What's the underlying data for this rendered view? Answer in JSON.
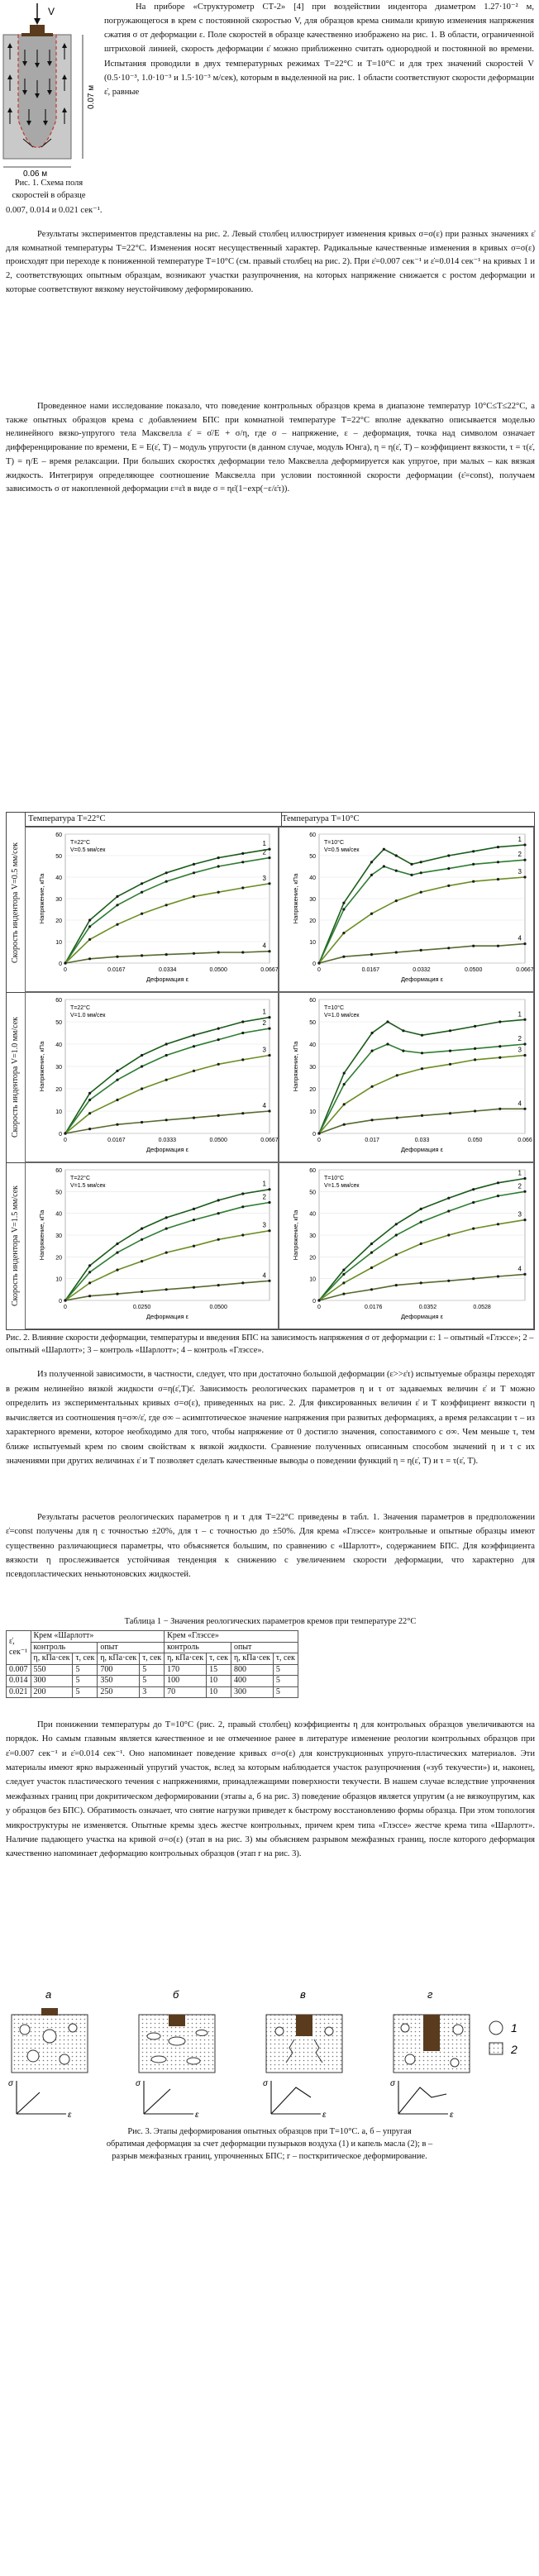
{
  "fig1": {
    "label_v": "V",
    "label_height": "0.07 м",
    "label_width": "0.06 м",
    "caption_l1": "Рис. 1. Схема поля",
    "caption_l2": "скоростей в образце"
  },
  "intro": {
    "p1": "На приборе «Структурометр СТ-2» [4] при воздействии индентора диаметром 1.27·10⁻² м, погружающегося в крем с постоянной скоростью V, для образцов крема снимали кривую изменения напряжения сжатия σ от деформации ε. Поле скоростей в образце качественно изображено на рис. 1. В области, ограниченной штриховой линией, скорость деформации ε̇ можно приближенно считать однородной и постоянной во времени. Испытания проводили в двух температурных режимах T=22°C и T=10°C и для трех значений скоростей V (0.5·10⁻³, 1.0·10⁻³ и 1.5·10⁻³ м/сек), которым в выделенной на рис. 1 области соответствуют скорости деформации ε̇, равные",
    "p1_end": "0.007, 0.014 и 0.021 сек⁻¹.",
    "p2": "Результаты экспериментов представлены на рис. 2. Левый столбец иллюстрирует изменения кривых σ=σ(ε) при разных значениях ε̇ для комнатной температуры T=22°C. Изменения носят несущественный характер. Радикальные качественные изменения в кривых σ=σ(ε) происходят при переходе к пониженной температуре T=10°C (см. правый столбец на рис. 2). При ε̇=0.007 сек⁻¹ и ε̇=0.014 сек⁻¹ на кривых 1 и 2, соответствующих опытным образцам, возникают участки разупрочнения, на которых напряжение снижается с ростом деформации и которые соответствуют вязкому неустойчивому деформированию.",
    "p3": "Проведенное нами исследование показало, что поведение контрольных образцов крема в диапазоне температур 10°C≤T≤22°C, а также опытных образцов крема с добавлением БПС при комнатной температуре T=22°C вполне адекватно описывается моделью нелинейного вязко-упругого тела Максвелла ε̇ = σ̇/E + σ/η, где σ – напряжение, ε – деформация, точка над символом означает дифференцирование по времени, E = E(ε̇, T) – модуль упругости (в данном случае, модуль Юнга), η = η(ε̇, T) – коэффициент вязкости, τ = τ(ε̇, T) = η/E – время релаксации. При больших скоростях деформации тело Максвелла деформируется как упругое, при малых – как вязкая жидкость. Интегрируя определяющее соотношение Максвелла при условии постоянной скорости деформации (ε̇=const), получаем зависимость σ от накопленной деформации ε=ε̇t в виде σ = ηε̇(1−exp(−ε/ε̇τ))."
  },
  "fig2": {
    "col_left": "Температура T=22°C",
    "col_right": "Температура T=10°C",
    "row1": "Скорость индентора V=0.5 мм/сек",
    "row2": "Скорость индентора V=1.0 мм/сек",
    "row3": "Скорость индентора V=1.5 мм/сек",
    "caption": "Рис. 2. Влияние скорости деформации, температуры и введения БПС на зависимость напряжения σ от деформации ε: 1 – опытный «Глэссе»; 2 – опытный «Шарлотт»; 3 – контроль «Шарлотт»; 4 – контроль «Глэссе».",
    "y_label": "Напряжение, кПа",
    "x_label": "Деформация ε"
  },
  "chart_data": [
    {
      "type": "line",
      "ylabel": "Напряжение, кПа",
      "xlabel": "Деформация ε",
      "legend_text": [
        "T=22°C",
        "V=0.5 мм/сек"
      ],
      "xticks": [
        "0",
        "0.0167",
        "0.0334",
        "0.0500",
        "0.0667"
      ],
      "yticks": [
        "0",
        "10",
        "20",
        "30",
        "40",
        "50",
        "60"
      ],
      "xlim": [
        0,
        0.0667
      ],
      "ylim": [
        0,
        60
      ],
      "series": [
        {
          "name": "1",
          "x": [
            0,
            0.008,
            0.017,
            0.025,
            0.033,
            0.042,
            0.05,
            0.058,
            0.0667
          ],
          "y": [
            0,
            20,
            31,
            37,
            42,
            46,
            49,
            51,
            53
          ]
        },
        {
          "name": "2",
          "x": [
            0,
            0.008,
            0.017,
            0.025,
            0.033,
            0.042,
            0.05,
            0.058,
            0.0667
          ],
          "y": [
            0,
            17,
            27,
            33,
            38,
            42,
            45,
            47,
            49
          ]
        },
        {
          "name": "3",
          "x": [
            0,
            0.008,
            0.017,
            0.025,
            0.033,
            0.042,
            0.05,
            0.058,
            0.0667
          ],
          "y": [
            0,
            11,
            18,
            23,
            27,
            31,
            33,
            35,
            37
          ]
        },
        {
          "name": "4",
          "x": [
            0,
            0.008,
            0.017,
            0.025,
            0.033,
            0.042,
            0.05,
            0.058,
            0.0667
          ],
          "y": [
            0,
            2,
            3,
            3.5,
            4,
            4.5,
            5,
            5,
            5.5
          ]
        }
      ]
    },
    {
      "type": "line",
      "ylabel": "Напряжение, кПа",
      "xlabel": "Деформация ε",
      "legend_text": [
        "T=10°C",
        "V=0.5 мм/сек"
      ],
      "xticks": [
        "0",
        "0.0167",
        "0.0332",
        "0.0500",
        "0.0667"
      ],
      "yticks": [
        "0",
        "10",
        "20",
        "30",
        "40",
        "50",
        "60"
      ],
      "xlim": [
        0,
        0.0667
      ],
      "ylim": [
        0,
        60
      ],
      "series": [
        {
          "name": "1",
          "x": [
            0,
            0.008,
            0.017,
            0.021,
            0.025,
            0.03,
            0.033,
            0.042,
            0.05,
            0.058,
            0.0667
          ],
          "y": [
            0,
            28,
            47,
            53,
            50,
            46,
            47,
            50,
            52,
            54,
            55
          ]
        },
        {
          "name": "2",
          "x": [
            0,
            0.008,
            0.017,
            0.021,
            0.025,
            0.03,
            0.033,
            0.042,
            0.05,
            0.058,
            0.0667
          ],
          "y": [
            0,
            25,
            41,
            45,
            43,
            41,
            42,
            44,
            46,
            47,
            48
          ]
        },
        {
          "name": "3",
          "x": [
            0,
            0.008,
            0.017,
            0.025,
            0.033,
            0.042,
            0.05,
            0.058,
            0.0667
          ],
          "y": [
            0,
            14,
            23,
            29,
            33,
            36,
            38,
            39,
            40
          ]
        },
        {
          "name": "4",
          "x": [
            0,
            0.008,
            0.017,
            0.025,
            0.033,
            0.042,
            0.05,
            0.058,
            0.0667
          ],
          "y": [
            0,
            3,
            4,
            5,
            6,
            7,
            8,
            8,
            9
          ]
        }
      ]
    },
    {
      "type": "line",
      "ylabel": "Напряжение, кПа",
      "xlabel": "Деформация ε",
      "legend_text": [
        "T=22°C",
        "V=1.0 мм/сек"
      ],
      "xticks": [
        "0",
        "0.0167",
        "0.0333",
        "0.0500",
        "0.0667"
      ],
      "yticks": [
        "0",
        "10",
        "20",
        "30",
        "40",
        "50",
        "60"
      ],
      "xlim": [
        0,
        0.0667
      ],
      "ylim": [
        0,
        60
      ],
      "series": [
        {
          "name": "1",
          "x": [
            0,
            0.008,
            0.017,
            0.025,
            0.033,
            0.042,
            0.05,
            0.058,
            0.0667
          ],
          "y": [
            0,
            18,
            28,
            35,
            40,
            44,
            47,
            50,
            52
          ]
        },
        {
          "name": "2",
          "x": [
            0,
            0.008,
            0.017,
            0.025,
            0.033,
            0.042,
            0.05,
            0.058,
            0.0667
          ],
          "y": [
            0,
            15,
            24,
            30,
            35,
            39,
            42,
            45,
            47
          ]
        },
        {
          "name": "3",
          "x": [
            0,
            0.008,
            0.017,
            0.025,
            0.033,
            0.042,
            0.05,
            0.058,
            0.0667
          ],
          "y": [
            0,
            9,
            15,
            20,
            24,
            28,
            31,
            33,
            35
          ]
        },
        {
          "name": "4",
          "x": [
            0,
            0.008,
            0.017,
            0.025,
            0.033,
            0.042,
            0.05,
            0.058,
            0.0667
          ],
          "y": [
            0,
            2,
            4,
            5,
            6,
            7,
            8,
            9,
            10
          ]
        }
      ]
    },
    {
      "type": "line",
      "ylabel": "Напряжение, кПа",
      "xlabel": "Деформация ε",
      "legend_text": [
        "T=10°C",
        "V=1.0 мм/сек"
      ],
      "xticks": [
        "0",
        "0.017",
        "0.033",
        "0.050",
        "0.066"
      ],
      "yticks": [
        "0",
        "10",
        "20",
        "30",
        "40",
        "50",
        "60"
      ],
      "xlim": [
        0,
        0.066
      ],
      "ylim": [
        0,
        60
      ],
      "series": [
        {
          "name": "1",
          "x": [
            0,
            0.008,
            0.017,
            0.022,
            0.027,
            0.033,
            0.042,
            0.05,
            0.058,
            0.066
          ],
          "y": [
            0,
            27,
            45,
            50,
            46,
            44,
            46,
            48,
            50,
            51
          ]
        },
        {
          "name": "2",
          "x": [
            0,
            0.008,
            0.017,
            0.022,
            0.027,
            0.033,
            0.042,
            0.05,
            0.058,
            0.066
          ],
          "y": [
            0,
            22,
            37,
            40,
            37,
            36,
            37,
            38,
            39,
            40
          ]
        },
        {
          "name": "3",
          "x": [
            0,
            0.008,
            0.017,
            0.025,
            0.033,
            0.042,
            0.05,
            0.058,
            0.066
          ],
          "y": [
            0,
            13,
            21,
            26,
            29,
            31,
            33,
            34,
            35
          ]
        },
        {
          "name": "4",
          "x": [
            0,
            0.008,
            0.017,
            0.025,
            0.033,
            0.042,
            0.05,
            0.058,
            0.066
          ],
          "y": [
            0,
            4,
            6,
            7,
            8,
            9,
            10,
            11,
            11
          ]
        }
      ]
    },
    {
      "type": "line",
      "ylabel": "Напряжение, кПа",
      "xlabel": "Деформация ε",
      "legend_text": [
        "T=22°C",
        "V=1.5 мм/сек"
      ],
      "xticks": [
        "0",
        "0.0250",
        "0.0500"
      ],
      "yticks": [
        "0",
        "10",
        "20",
        "30",
        "40",
        "50",
        "60"
      ],
      "xlim": [
        0,
        0.0667
      ],
      "ylim": [
        0,
        60
      ],
      "series": [
        {
          "name": "1",
          "x": [
            0,
            0.008,
            0.017,
            0.025,
            0.033,
            0.042,
            0.05,
            0.058,
            0.0667
          ],
          "y": [
            0,
            16,
            26,
            33,
            38,
            42,
            46,
            49,
            51
          ]
        },
        {
          "name": "2",
          "x": [
            0,
            0.008,
            0.017,
            0.025,
            0.033,
            0.042,
            0.05,
            0.058,
            0.0667
          ],
          "y": [
            0,
            13,
            22,
            28,
            33,
            37,
            40,
            43,
            45
          ]
        },
        {
          "name": "3",
          "x": [
            0,
            0.008,
            0.017,
            0.025,
            0.033,
            0.042,
            0.05,
            0.058,
            0.0667
          ],
          "y": [
            0,
            8,
            14,
            18,
            22,
            25,
            28,
            30,
            32
          ]
        },
        {
          "name": "4",
          "x": [
            0,
            0.008,
            0.017,
            0.025,
            0.033,
            0.042,
            0.05,
            0.058,
            0.0667
          ],
          "y": [
            0,
            2,
            3,
            4,
            5,
            6,
            7,
            8,
            9
          ]
        }
      ]
    },
    {
      "type": "line",
      "ylabel": "Напряжение, кПа",
      "xlabel": "Деформация ε",
      "legend_text": [
        "T=10°C",
        "V=1.5 мм/сек"
      ],
      "xticks": [
        "0",
        "0.0176",
        "0.0352",
        "0.0528"
      ],
      "yticks": [
        "0",
        "10",
        "20",
        "30",
        "40",
        "50",
        "60"
      ],
      "xlim": [
        0,
        0.0667
      ],
      "ylim": [
        0,
        60
      ],
      "series": [
        {
          "name": "1",
          "x": [
            0,
            0.008,
            0.017,
            0.025,
            0.033,
            0.042,
            0.05,
            0.058,
            0.0667
          ],
          "y": [
            0,
            14,
            26,
            35,
            42,
            47,
            51,
            54,
            56
          ]
        },
        {
          "name": "2",
          "x": [
            0,
            0.008,
            0.017,
            0.025,
            0.033,
            0.042,
            0.05,
            0.058,
            0.0667
          ],
          "y": [
            0,
            12,
            22,
            30,
            36,
            41,
            45,
            48,
            50
          ]
        },
        {
          "name": "3",
          "x": [
            0,
            0.008,
            0.017,
            0.025,
            0.033,
            0.042,
            0.05,
            0.058,
            0.0667
          ],
          "y": [
            0,
            8,
            15,
            21,
            26,
            30,
            33,
            35,
            37
          ]
        },
        {
          "name": "4",
          "x": [
            0,
            0.008,
            0.017,
            0.025,
            0.033,
            0.042,
            0.05,
            0.058,
            0.0667
          ],
          "y": [
            0,
            3,
            5,
            7,
            8,
            9,
            10,
            11,
            12
          ]
        }
      ]
    }
  ],
  "body2": {
    "p1": "Из полученной зависимости, в частности, следует, что при достаточно большой деформации (ε>>ε̇τ) испытуемые образцы переходят в режим нелинейно вязкой жидкости σ=η(ε̇,T)ε̇. Зависимость реологических параметров η и τ от задаваемых величин ε̇ и T можно определить из экспериментальных кривых σ=σ(ε), приведенных на рис. 2. Для фиксированных величин ε̇ и T коэффициент вязкости η вычисляется из соотношения η=σ∞/ε̇, где σ∞ – асимптотическое значение напряжения при развитых деформациях, а время релаксации τ – из характерного времени, которое необходимо для того, чтобы напряжение от 0 достигло значения, сопоставимого с σ∞. Чем меньше τ, тем ближе испытуемый крем по своим свойствам к вязкой жидкости. Сравнение полученных описанным способом значений η и τ с их значениями при других величинах ε̇ и T позволяет сделать качественные выводы о поведении функций η = η(ε̇, T) и τ = τ(ε̇, T).",
    "p2": "Результаты расчетов реологических параметров η и τ для T=22°C приведены в табл. 1. Значения параметров в предположении ε̇=const получены для η с точностью ±20%, для τ – с точностью до ±50%. Для крема «Глэссе» контрольные и опытные образцы имеют существенно различающиеся параметры, что объясняется большим, по сравнению с «Шарлотт», содержанием БПС. Для коэффициента вязкости η прослеживается устойчивая тенденция к снижению с увеличением скорости деформации, что характерно для псевдопластических неньютоновских жидкостей."
  },
  "table1": {
    "title": "Таблица 1 − Значения реологических параметров кремов при температуре 22°C",
    "corner_l1": "ε̇,",
    "corner_l2": "сек⁻¹",
    "group_a": "Крем «Шарлотт»",
    "group_b": "Крем «Глэссе»",
    "sub_control": "контроль",
    "sub_exp": "опыт",
    "h_eta": "η, кПа·сек",
    "h_tau": "τ, сек",
    "rows": [
      [
        "0.007",
        "550",
        "5",
        "700",
        "5",
        "170",
        "15",
        "800",
        "5"
      ],
      [
        "0.014",
        "300",
        "5",
        "350",
        "5",
        "100",
        "10",
        "400",
        "5"
      ],
      [
        "0.021",
        "200",
        "5",
        "250",
        "3",
        "70",
        "10",
        "300",
        "5"
      ]
    ]
  },
  "body3": {
    "p1": "При понижении температуры до T=10°C (рис. 2, правый столбец) коэффициенты η для контрольных образцов увеличиваются на порядок. Но самым главным является качественное и не отмеченное ранее в литературе изменение реологии контрольных образцов при ε̇=0.007 сек⁻¹ и ε̇=0.014 сек⁻¹. Оно напоминает поведение кривых σ=σ(ε) для конструкционных упруго-пластических материалов. Эти материалы имеют ярко выраженный упругий участок, вслед за которым наблюдается участок разупрочнения («зуб текучести») и, наконец, следует участок пластического течения с напряжениями, принадлежащими поверхности текучести. В нашем случае вследствие упрочнения межфазных границ при докритическом деформировании (этапы а, б на рис. 3) поведение образцов является упругим (а не вязкоупругим, как у образцов без БПС). Обратимость означает, что снятие нагрузки приведет к быстрому восстановлению формы образца. При этом топология микроструктуры не изменяется. Опытные кремы здесь жестче контрольных, причем крем типа «Глэссе» жестче крема типа «Шарлотт». Наличие падающего участка на кривой σ=σ(ε) (этап в на рис. 3) мы объясняем разрывом межфазных границ, после которого деформация качественно напоминает деформацию контрольных образцов (этап г на рис. 3)."
  },
  "fig3": {
    "stage_a": "а",
    "stage_b": "б",
    "stage_v": "в",
    "stage_g": "г",
    "legend_1": "1",
    "legend_2": "2",
    "axis_sigma": "σ",
    "axis_eps": "ε",
    "caption_l1": "Рис. 3. Этапы деформирования опытных образцов при T=10°C. а, б – упругая",
    "caption_l2": "обратимая деформация за счет деформации пузырьков воздуха (1) и капель масла (2); в –",
    "caption_l3": "разрыв межфазных границ, упрочненных БПС; г – пост­критическое деформирование."
  }
}
